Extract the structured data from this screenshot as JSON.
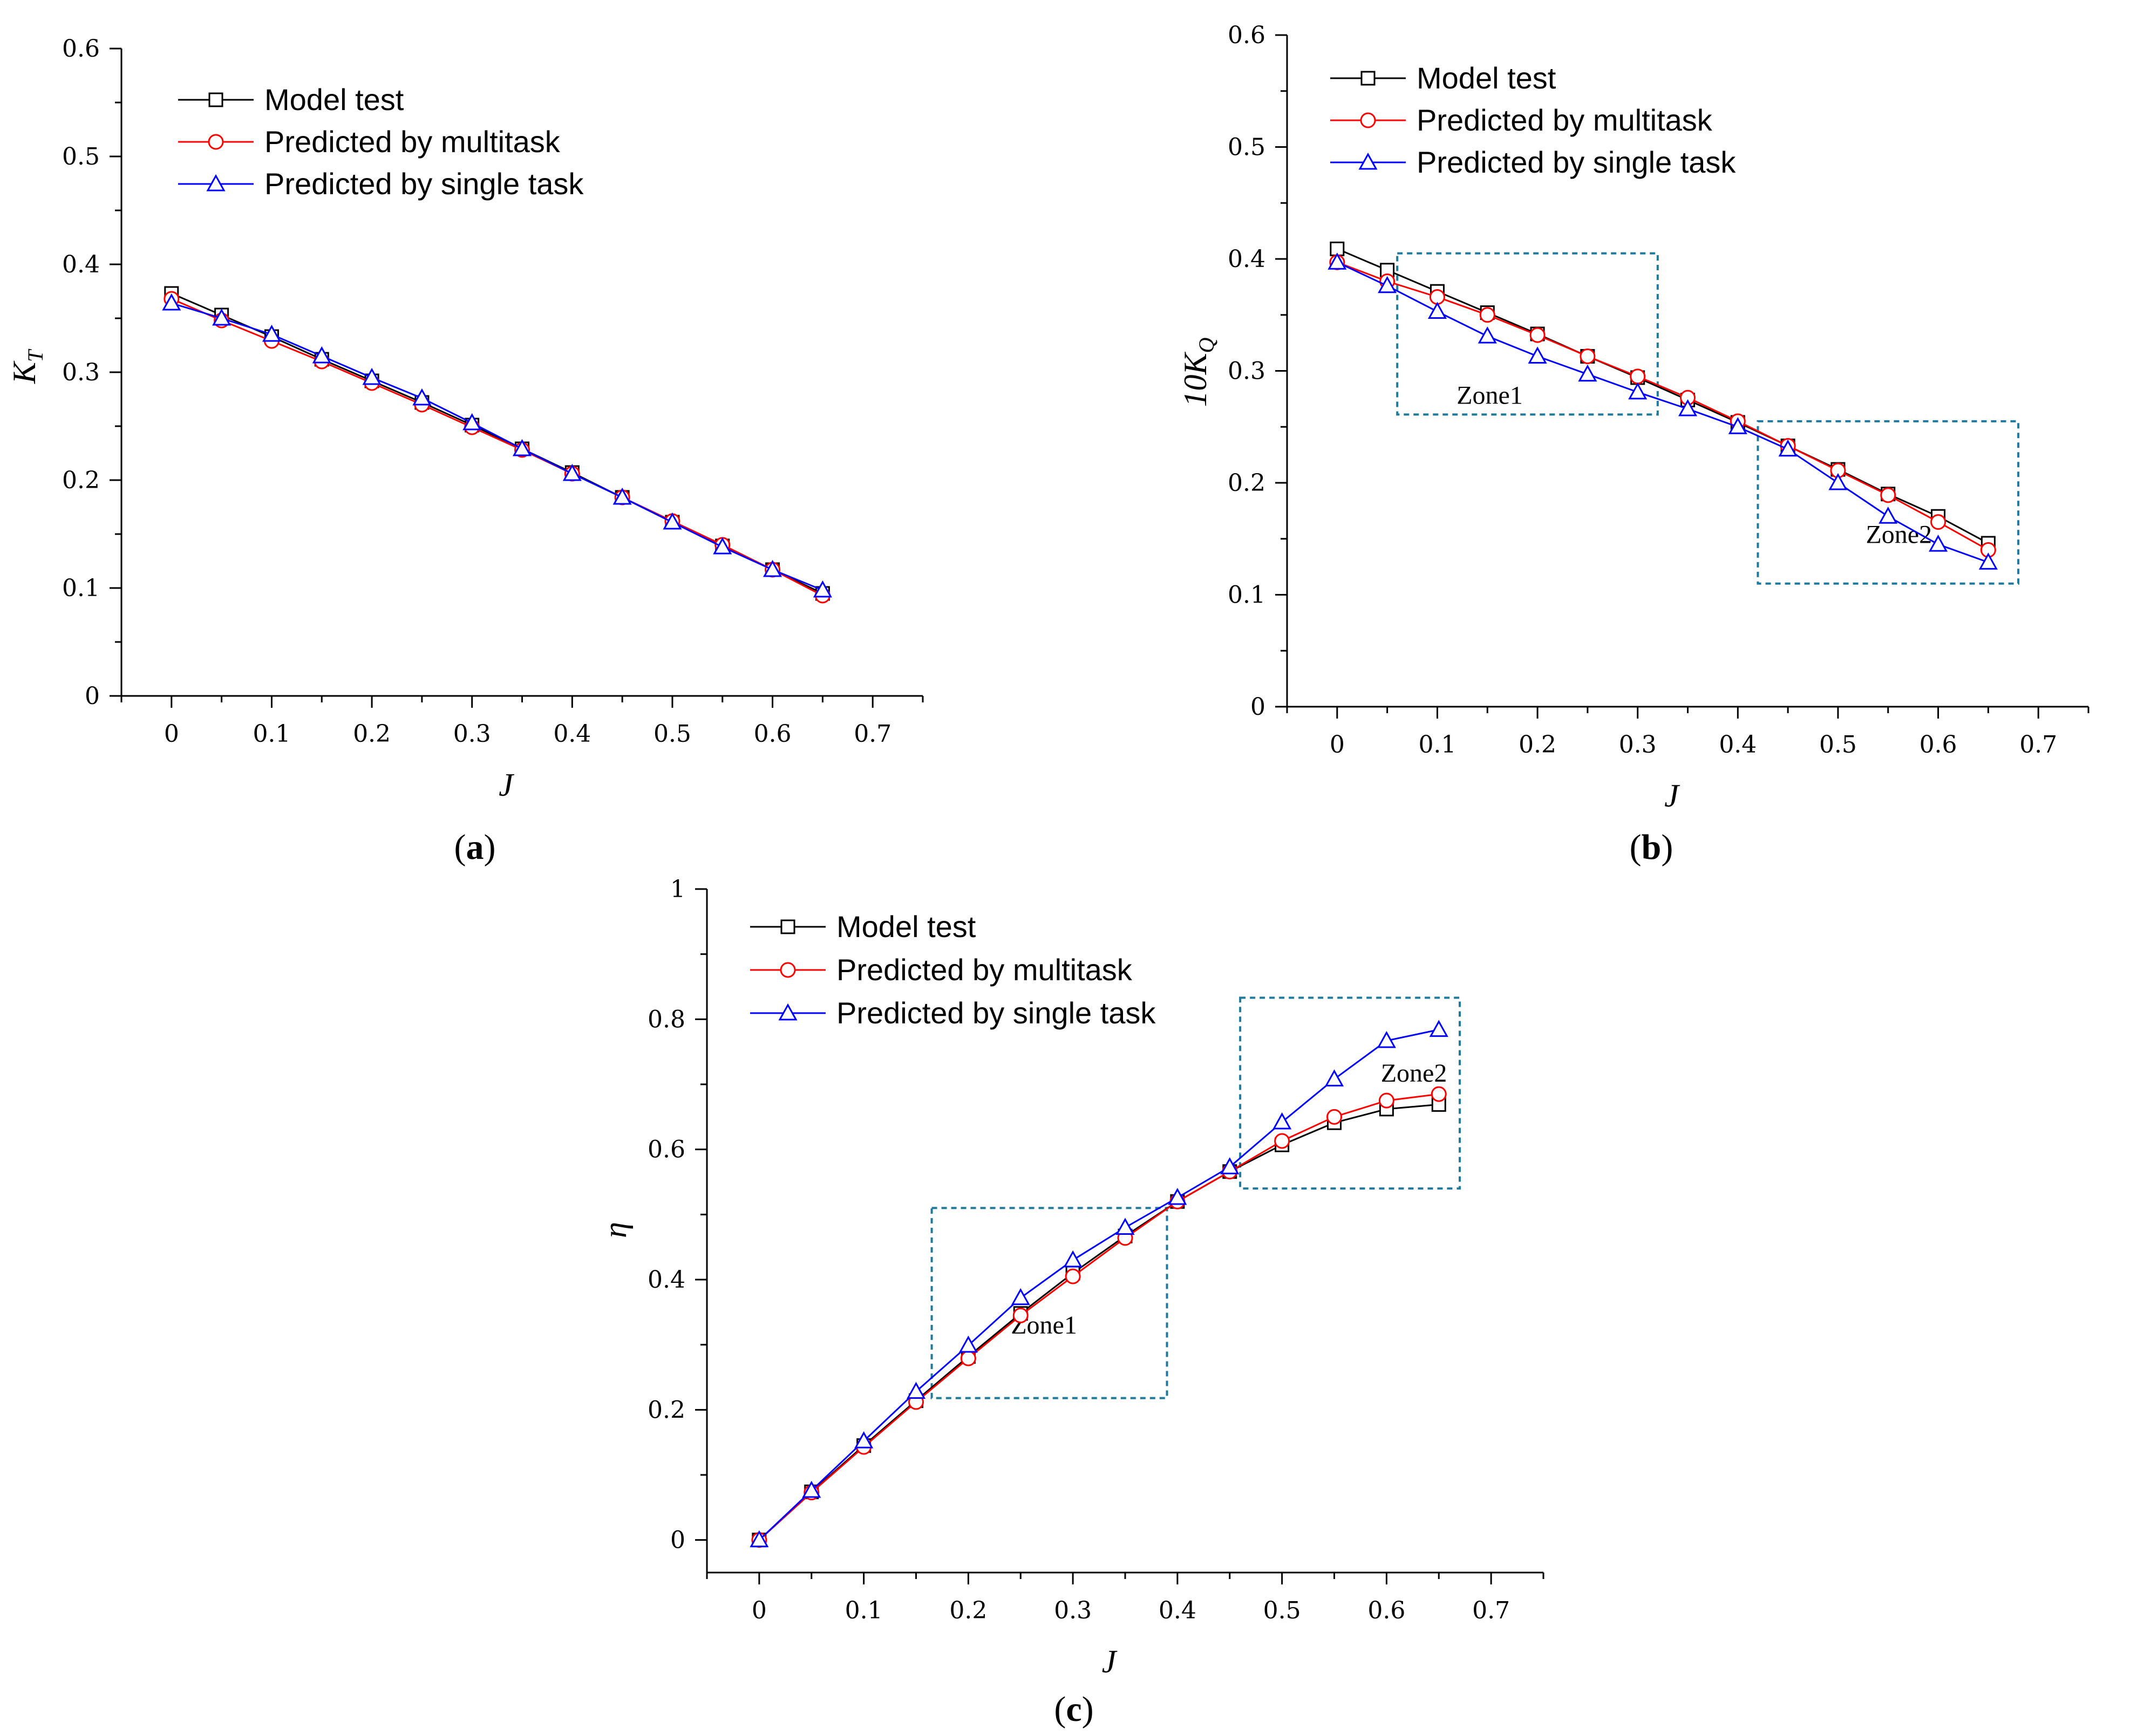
{
  "chart_data": [
    {
      "panel": "a",
      "type": "line",
      "xlabel": "J",
      "ylabel": "K_T",
      "ylabel_main": "K",
      "ylabel_sub": "T",
      "xlim": [
        -0.05,
        0.75
      ],
      "ylim": [
        0.0,
        0.6
      ],
      "xticks": [
        0.0,
        0.1,
        0.2,
        0.3,
        0.4,
        0.5,
        0.6,
        0.7
      ],
      "yticks": [
        0.0,
        0.1,
        0.2,
        0.3,
        0.4,
        0.5,
        0.6
      ],
      "caption": {
        "open": "(",
        "letter": "a",
        "close": ")"
      },
      "legend_position": "top-left",
      "x": [
        0.0,
        0.05,
        0.1,
        0.15,
        0.2,
        0.25,
        0.3,
        0.35,
        0.4,
        0.45,
        0.5,
        0.55,
        0.6,
        0.65
      ],
      "series": [
        {
          "name": "Model test",
          "color": "#000000",
          "marker": "square",
          "values": [
            0.373,
            0.353,
            0.333,
            0.312,
            0.292,
            0.272,
            0.251,
            0.229,
            0.207,
            0.184,
            0.161,
            0.139,
            0.117,
            0.095
          ]
        },
        {
          "name": "Predicted by multitask",
          "color": "#ff0000",
          "marker": "circle",
          "values": [
            0.368,
            0.348,
            0.329,
            0.31,
            0.29,
            0.27,
            0.249,
            0.228,
            0.206,
            0.184,
            0.162,
            0.14,
            0.117,
            0.093
          ]
        },
        {
          "name": "Predicted by single task",
          "color": "#0000ff",
          "marker": "triangle",
          "values": [
            0.364,
            0.35,
            0.335,
            0.315,
            0.295,
            0.276,
            0.253,
            0.229,
            0.206,
            0.184,
            0.161,
            0.138,
            0.117,
            0.098
          ]
        }
      ],
      "zones": []
    },
    {
      "panel": "b",
      "type": "line",
      "xlabel": "J",
      "ylabel": "10K_Q",
      "ylabel_main": "10K",
      "ylabel_sub": "Q",
      "xlim": [
        -0.05,
        0.75
      ],
      "ylim": [
        0.0,
        0.6
      ],
      "xticks": [
        0.0,
        0.1,
        0.2,
        0.3,
        0.4,
        0.5,
        0.6,
        0.7
      ],
      "yticks": [
        0.0,
        0.1,
        0.2,
        0.3,
        0.4,
        0.5,
        0.6
      ],
      "caption": {
        "open": "(",
        "letter": "b",
        "close": ")"
      },
      "legend_position": "top-left",
      "x": [
        0.0,
        0.05,
        0.1,
        0.15,
        0.2,
        0.25,
        0.3,
        0.35,
        0.4,
        0.45,
        0.5,
        0.55,
        0.6,
        0.65
      ],
      "series": [
        {
          "name": "Model test",
          "color": "#000000",
          "marker": "square",
          "values": [
            0.409,
            0.39,
            0.371,
            0.352,
            0.333,
            0.313,
            0.294,
            0.274,
            0.254,
            0.233,
            0.212,
            0.19,
            0.17,
            0.146
          ]
        },
        {
          "name": "Predicted by multitask",
          "color": "#ff0000",
          "marker": "circle",
          "values": [
            0.397,
            0.38,
            0.366,
            0.35,
            0.332,
            0.313,
            0.295,
            0.276,
            0.255,
            0.233,
            0.211,
            0.189,
            0.165,
            0.14
          ]
        },
        {
          "name": "Predicted by single task",
          "color": "#0000ff",
          "marker": "triangle",
          "values": [
            0.397,
            0.376,
            0.353,
            0.331,
            0.313,
            0.297,
            0.281,
            0.266,
            0.25,
            0.23,
            0.2,
            0.17,
            0.145,
            0.129
          ]
        }
      ],
      "zones": [
        {
          "label": "Zone1",
          "x0": 0.06,
          "x1": 0.32,
          "y0": 0.261,
          "y1": 0.405
        },
        {
          "label": "Zone2",
          "x0": 0.42,
          "x1": 0.68,
          "y0": 0.11,
          "y1": 0.255
        }
      ]
    },
    {
      "panel": "c",
      "type": "line",
      "xlabel": "J",
      "ylabel": "η",
      "ylabel_main": "η",
      "ylabel_sub": "",
      "xlim": [
        -0.05,
        0.75
      ],
      "ylim": [
        -0.05,
        1.0
      ],
      "xticks": [
        0.0,
        0.1,
        0.2,
        0.3,
        0.4,
        0.5,
        0.6,
        0.7
      ],
      "yticks": [
        0.0,
        0.2,
        0.4,
        0.6,
        0.8,
        1.0
      ],
      "caption": {
        "open": "(",
        "letter": "c",
        "close": ")"
      },
      "legend_position": "top-left",
      "x": [
        0.0,
        0.05,
        0.1,
        0.15,
        0.2,
        0.25,
        0.3,
        0.35,
        0.4,
        0.45,
        0.5,
        0.55,
        0.6,
        0.65
      ],
      "series": [
        {
          "name": "Model test",
          "color": "#000000",
          "marker": "square",
          "values": [
            0.0,
            0.074,
            0.145,
            0.214,
            0.282,
            0.348,
            0.41,
            0.467,
            0.52,
            0.566,
            0.607,
            0.641,
            0.662,
            0.669
          ]
        },
        {
          "name": "Predicted by multitask",
          "color": "#ff0000",
          "marker": "circle",
          "values": [
            0.0,
            0.073,
            0.143,
            0.212,
            0.279,
            0.345,
            0.405,
            0.464,
            0.52,
            0.566,
            0.613,
            0.65,
            0.675,
            0.685
          ]
        },
        {
          "name": "Predicted by single task",
          "color": "#0000ff",
          "marker": "triangle",
          "values": [
            0.0,
            0.076,
            0.152,
            0.228,
            0.299,
            0.372,
            0.43,
            0.48,
            0.526,
            0.573,
            0.642,
            0.708,
            0.767,
            0.784
          ]
        }
      ],
      "zones": [
        {
          "label": "Zone1",
          "x0": 0.165,
          "x1": 0.39,
          "y0": 0.218,
          "y1": 0.51
        },
        {
          "label": "Zone2",
          "x0": 0.46,
          "x1": 0.67,
          "y0": 0.54,
          "y1": 0.833
        }
      ]
    }
  ]
}
